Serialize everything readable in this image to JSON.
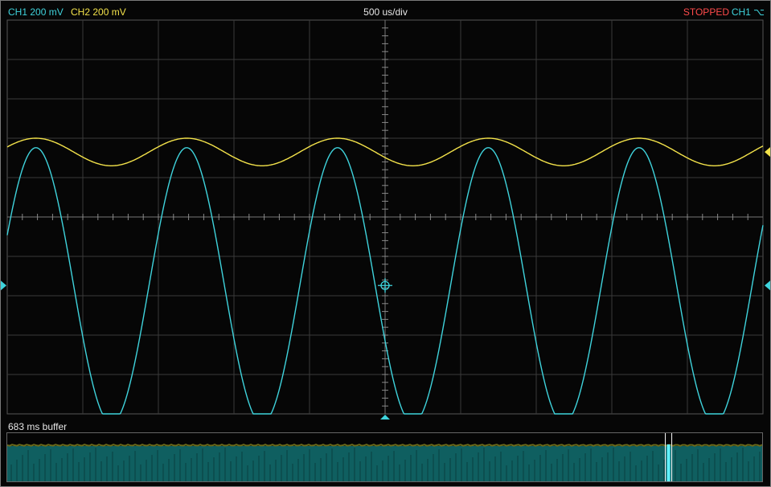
{
  "header": {
    "ch1_label": "CH1 200 mV",
    "ch2_label": "CH2 200 mV",
    "timebase": "500 us/div",
    "run_state": "STOPPED",
    "trigger_source": "CH1 ⌥"
  },
  "buffer": {
    "label": "683 ms buffer",
    "viewed_position": 0.876
  },
  "colors": {
    "ch1": "#3fd3dc",
    "ch2": "#f3e24a",
    "stopped": "#ff4b4b",
    "grid": "#3a3a3a",
    "buffer_fill": "#0f5f60"
  },
  "icons": [
    "ch1-offset-marker-icon",
    "ch2-offset-marker-icon",
    "trigger-position-icon",
    "trigger-crosshair-icon"
  ],
  "chart_data": {
    "type": "line",
    "title": "",
    "xlabel": "",
    "ylabel": "",
    "divisions": {
      "horizontal": 10,
      "vertical": 10
    },
    "x_range_div": [
      0,
      10
    ],
    "y_range_div": [
      -5,
      5
    ],
    "series": [
      {
        "name": "CH1",
        "color": "#3fd3dc",
        "center_div": -1.74,
        "amplitude_div": 3.5,
        "period_div": 1.995,
        "phase_div": 0.38
      },
      {
        "name": "CH2",
        "color": "#f3e24a",
        "center_div": 1.65,
        "amplitude_div": 0.35,
        "period_div": 1.995,
        "phase_div": 0.38
      }
    ],
    "markers": {
      "ch1_offset_div": -1.74,
      "ch2_offset_div": 1.65
    }
  }
}
